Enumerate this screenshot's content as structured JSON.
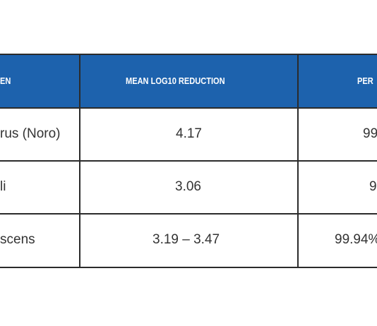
{
  "table": {
    "header": [
      "EN",
      "MEAN LOG10 REDUCTION",
      "PER"
    ],
    "rows": [
      [
        "rus (Noro)",
        "4.17",
        "99"
      ],
      [
        "li",
        "3.06",
        "9"
      ],
      [
        "scens",
        "3.19 – 3.47",
        "99.94%"
      ]
    ]
  }
}
